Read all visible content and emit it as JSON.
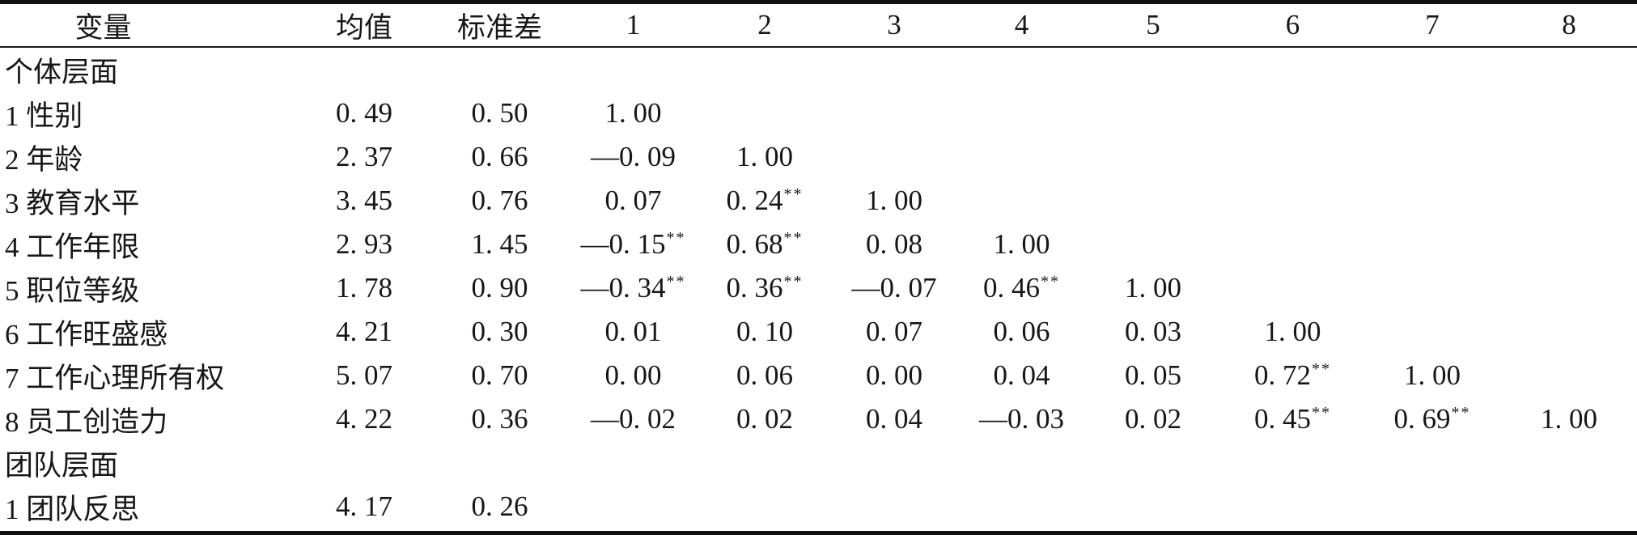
{
  "colors": {
    "background": "#ffffff",
    "text": "#171717",
    "rule": "#111111"
  },
  "table": {
    "header": [
      "变量",
      "均值",
      "标准差",
      "1",
      "2",
      "3",
      "4",
      "5",
      "6",
      "7",
      "8"
    ],
    "header_names": [
      "variable",
      "mean",
      "sd",
      "1",
      "2",
      "3",
      "4",
      "5",
      "6",
      "7",
      "8"
    ],
    "significance_marker": "**",
    "rows": [
      {
        "label": "个体层面",
        "section": true,
        "cells": [
          "",
          "",
          "",
          "",
          "",
          "",
          "",
          "",
          "",
          ""
        ]
      },
      {
        "label": "1 性别",
        "section": false,
        "cells": [
          "0.49",
          "0.50",
          "1.00",
          "",
          "",
          "",
          "",
          "",
          "",
          ""
        ]
      },
      {
        "label": "2 年龄",
        "section": false,
        "cells": [
          "2.37",
          "0.66",
          "−0.09",
          "1.00",
          "",
          "",
          "",
          "",
          "",
          ""
        ]
      },
      {
        "label": "3 教育水平",
        "section": false,
        "cells": [
          "3.45",
          "0.76",
          "0.07",
          "0.24**",
          "1.00",
          "",
          "",
          "",
          "",
          ""
        ]
      },
      {
        "label": "4 工作年限",
        "section": false,
        "cells": [
          "2.93",
          "1.45",
          "−0.15**",
          "0.68**",
          "0.08",
          "1.00",
          "",
          "",
          "",
          ""
        ]
      },
      {
        "label": "5 职位等级",
        "section": false,
        "cells": [
          "1.78",
          "0.90",
          "−0.34**",
          "0.36**",
          "−0.07",
          "0.46**",
          "1.00",
          "",
          "",
          ""
        ]
      },
      {
        "label": "6 工作旺盛感",
        "section": false,
        "cells": [
          "4.21",
          "0.30",
          "0.01",
          "0.10",
          "0.07",
          "0.06",
          "0.03",
          "1.00",
          "",
          ""
        ]
      },
      {
        "label": "7 工作心理所有权",
        "section": false,
        "cells": [
          "5.07",
          "0.70",
          "0.00",
          "0.06",
          "0.00",
          "0.04",
          "0.05",
          "0.72**",
          "1.00",
          ""
        ]
      },
      {
        "label": "8 员工创造力",
        "section": false,
        "cells": [
          "4.22",
          "0.36",
          "−0.02",
          "0.02",
          "0.04",
          "−0.03",
          "0.02",
          "0.45**",
          "0.69**",
          "1.00"
        ]
      },
      {
        "label": "团队层面",
        "section": true,
        "cells": [
          "",
          "",
          "",
          "",
          "",
          "",
          "",
          "",
          "",
          ""
        ]
      },
      {
        "label": "1 团队反思",
        "section": false,
        "cells": [
          "4.17",
          "0.26",
          "",
          "",
          "",
          "",
          "",
          "",
          "",
          ""
        ]
      }
    ]
  }
}
